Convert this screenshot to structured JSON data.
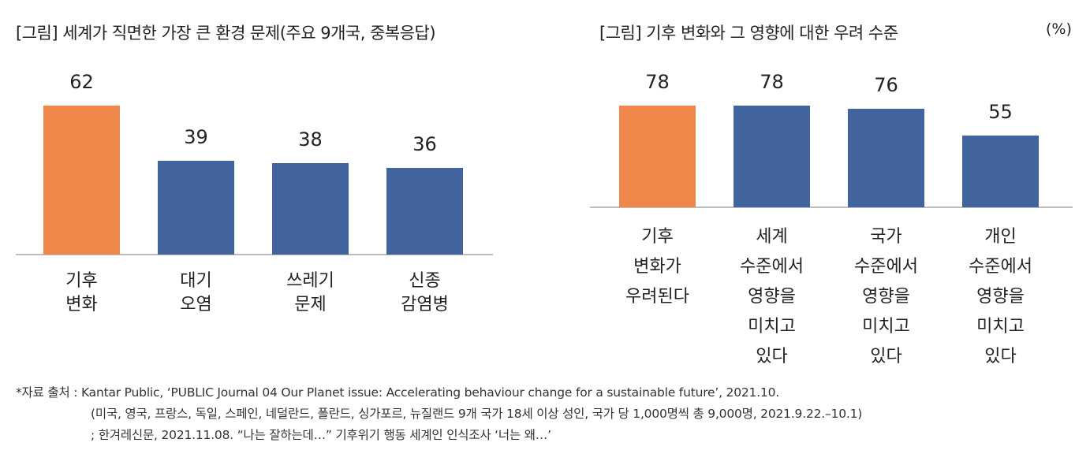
{
  "chart_data": [
    {
      "type": "bar",
      "title": "[그림] 세계가 직면한 가장 큰 환경 문제(주요 9개국, 중복응답)",
      "categories": [
        "기후\n변화",
        "대기\n오염",
        "쓰레기\n문제",
        "신종\n감염병"
      ],
      "values": [
        62,
        39,
        38,
        36
      ],
      "colors": [
        "#F0874A",
        "#41649E",
        "#41649E",
        "#41649E"
      ],
      "xlabel": "",
      "ylabel": ""
    },
    {
      "type": "bar",
      "title": "[그림] 기후 변화와 그 영향에 대한 우려 수준",
      "unit": "(%)",
      "categories": [
        "기후\n변화가\n우려된다",
        "세계\n수준에서\n영향을\n미치고\n있다",
        "국가\n수준에서\n영향을\n미치고\n있다",
        "개인\n수준에서\n영향을\n미치고\n있다"
      ],
      "values": [
        78,
        78,
        76,
        55
      ],
      "colors": [
        "#F0874A",
        "#41649E",
        "#41649E",
        "#41649E"
      ],
      "xlabel": "",
      "ylabel": ""
    }
  ],
  "footnote": [
    "*자료 출처 : Kantar Public, ‘PUBLIC Journal 04 Our Planet issue: Accelerating behaviour change for a sustainable future’, 2021.10.",
    "(미국, 영국, 프랑스, 독일, 스페인, 네덜란드, 폴란드, 싱가포르, 뉴질랜드 9개 국가 18세 이상 성인, 국가 당 1,000명씩 총 9,000명, 2021.9.22.–10.1)",
    "; 한겨레신문, 2021.11.08. “나는 잘하는데…” 기후위기 행동 세계인 인식조사 ‘너는 왜…’"
  ]
}
